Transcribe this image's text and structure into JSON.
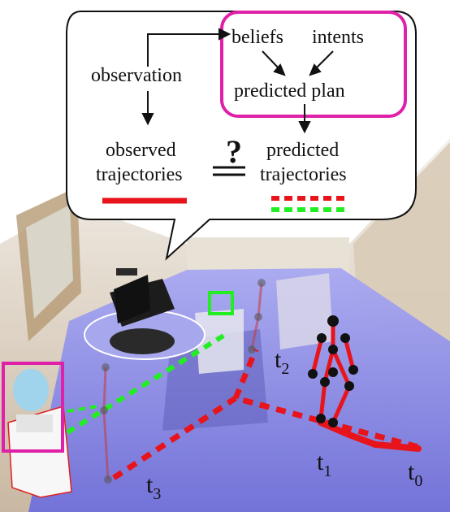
{
  "diagram": {
    "nodes": {
      "observation": "observation",
      "beliefs": "beliefs",
      "intents": "intents",
      "predicted_plan": "predicted plan",
      "observed_trajectories_line1": "observed",
      "observed_trajectories_line2": "trajectories",
      "predicted_trajectories_line1": "predicted",
      "predicted_trajectories_line2": "trajectories"
    },
    "comparison_symbol": "?",
    "legend": {
      "observed_color": "#e8141b",
      "predicted_colors": [
        "#e8141b",
        "#22ee22"
      ]
    },
    "highlight_color": "#e020a8"
  },
  "scene": {
    "time_labels": {
      "t0": {
        "base": "t",
        "sub": "0"
      },
      "t1": {
        "base": "t",
        "sub": "1"
      },
      "t2": {
        "base": "t",
        "sub": "2"
      },
      "t3": {
        "base": "t",
        "sub": "3"
      }
    },
    "colors": {
      "floor": "#7f7fe6",
      "observed_trajectory": "#e8141b",
      "predicted_red": "#e8141b",
      "predicted_green": "#22ee22",
      "target_box_magenta": "#e020a8",
      "target_box_green": "#22ee22",
      "skeleton_joint": "#111111"
    }
  }
}
